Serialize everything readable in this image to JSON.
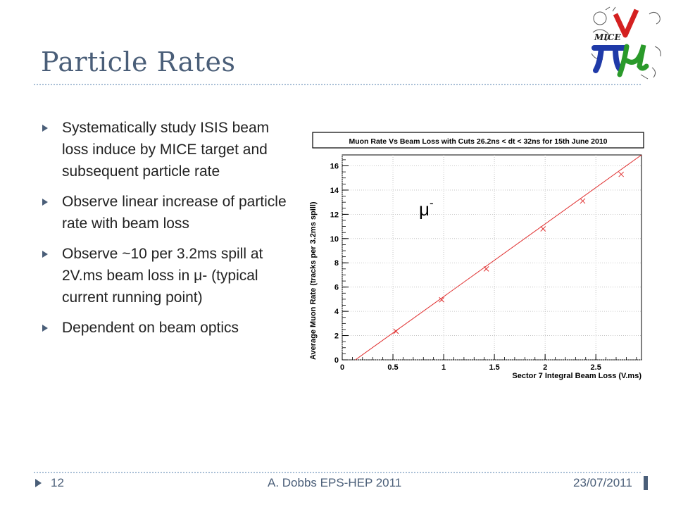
{
  "slide": {
    "title": "Particle Rates",
    "bullets": [
      "Systematically study ISIS beam loss induce by MICE target and subsequent particle rate",
      "Observe linear increase of particle rate with beam loss",
      "Observe ~10 per 3.2ms spill at 2V.ms beam loss in μ- (typical current running point)",
      "Dependent on beam optics"
    ],
    "footer": {
      "page_number": "12",
      "author": "A. Dobbs EPS-HEP 2011",
      "date": "23/07/2011"
    },
    "logo_text": "MICE"
  },
  "chart_data": {
    "type": "scatter",
    "title": "Muon  Rate Vs Beam Loss with Cuts 26.2ns < dt < 32ns for 15th June 2010",
    "xlabel": "Sector 7 Integral Beam Loss (V.ms)",
    "ylabel": "Average Muon Rate (tracks per 3.2ms spill)",
    "annotation": {
      "base": "μ",
      "sup": "-"
    },
    "xlim": [
      0,
      2.95
    ],
    "ylim": [
      0,
      16.9
    ],
    "x_ticks": [
      0,
      0.5,
      1,
      1.5,
      2,
      2.5
    ],
    "x_tick_labels": [
      "0",
      "0.5",
      "1",
      "1.5",
      "2",
      "2.5"
    ],
    "y_ticks": [
      0,
      2,
      4,
      6,
      8,
      10,
      12,
      14,
      16
    ],
    "y_tick_labels": [
      "0",
      "2",
      "4",
      "6",
      "8",
      "10",
      "12",
      "14",
      "16"
    ],
    "grid": true,
    "series": [
      {
        "color": "#e03030",
        "points": [
          {
            "x": 0.53,
            "y": 2.35
          },
          {
            "x": 0.98,
            "y": 4.95
          },
          {
            "x": 1.42,
            "y": 7.5
          },
          {
            "x": 1.98,
            "y": 10.8
          },
          {
            "x": 2.37,
            "y": 13.1
          },
          {
            "x": 2.75,
            "y": 15.3
          }
        ],
        "fit": {
          "x0": 0.13,
          "y0": 0,
          "x1": 2.95,
          "y1": 16.9
        }
      }
    ]
  }
}
